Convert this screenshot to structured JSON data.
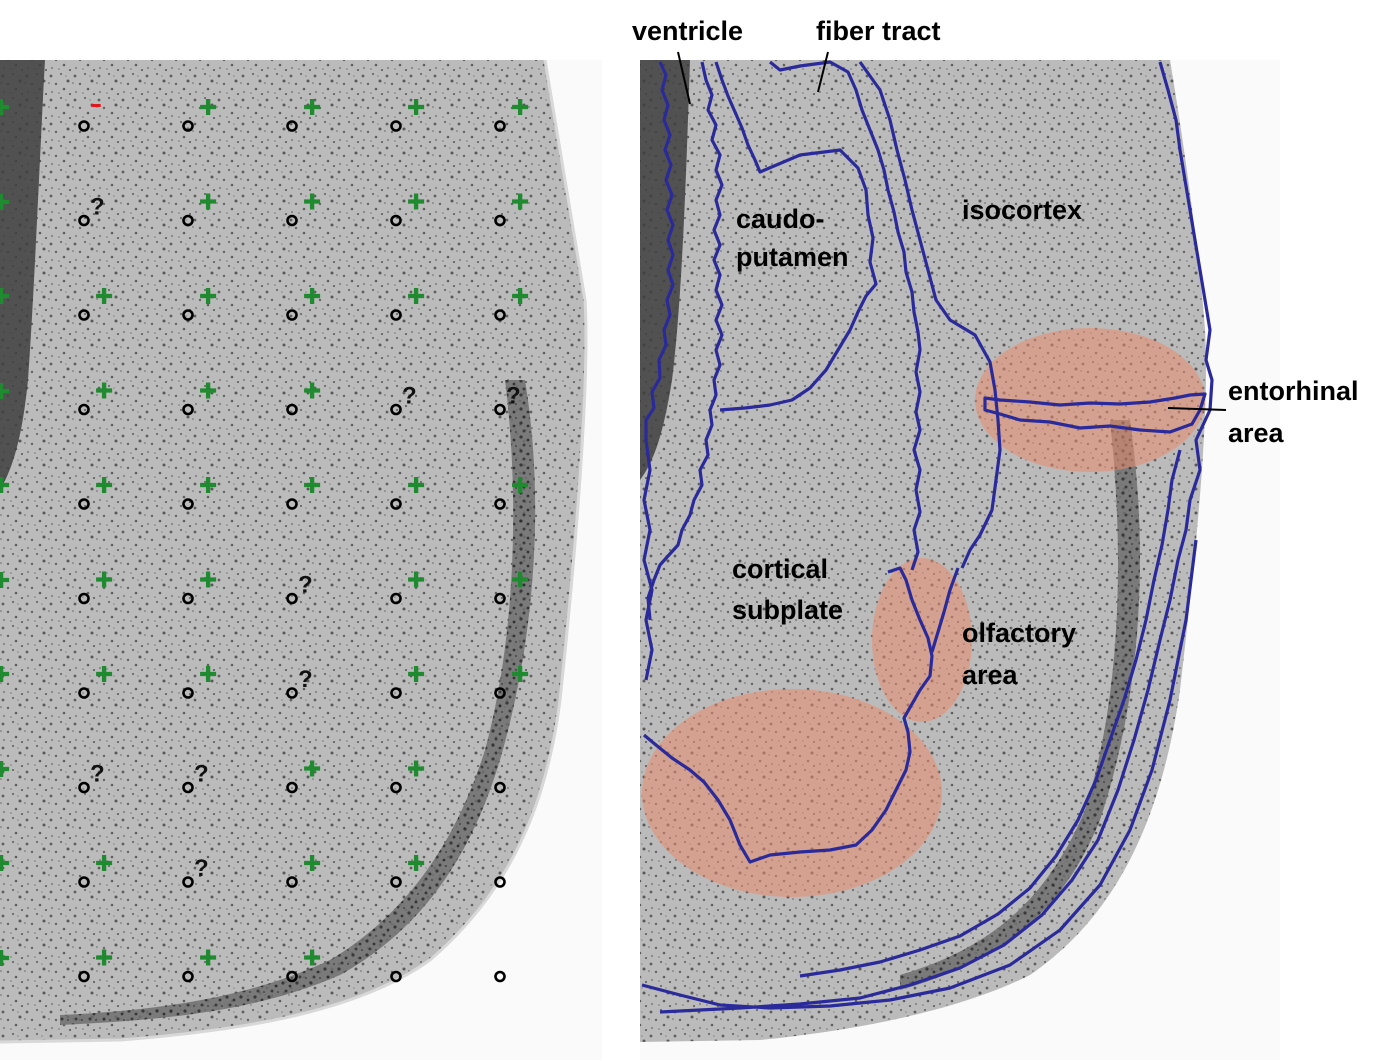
{
  "labels": {
    "ventricle": "ventricle",
    "fiber_tract": "fiber tract",
    "isocortex": "isocortex",
    "caudoputamen_line1": "caudo-",
    "caudoputamen_line2": "putamen",
    "cortical_subplate_line1": "cortical",
    "cortical_subplate_line2": "subplate",
    "olfactory_area_line1": "olfactory",
    "olfactory_area_line2": "area",
    "entorhinal_area_line1": "entorhinal",
    "entorhinal_area_line2": "area"
  },
  "marker_glyphs": {
    "plus": "✚",
    "question": "?",
    "minus": "–"
  },
  "colors": {
    "boundary": "#2a2a9a",
    "highlight": "#e98c6e",
    "plus_marker": "#1f8a2f",
    "minus_marker": "#e0161e",
    "question_marker": "#111111",
    "circle_marker": "#000000"
  },
  "grid": {
    "columns": 5,
    "rows": 10,
    "symbols": [
      [
        "minus",
        "plus",
        "plus",
        "plus",
        "plus"
      ],
      [
        "question",
        "plus",
        "plus",
        "plus",
        "plus"
      ],
      [
        "plus",
        "plus",
        "plus",
        "plus",
        "plus"
      ],
      [
        "plus",
        "plus",
        "plus",
        "question",
        "question"
      ],
      [
        "plus",
        "plus",
        "plus",
        "plus",
        "plus"
      ],
      [
        "plus",
        "plus",
        "question",
        "plus",
        "plus"
      ],
      [
        "plus",
        "plus",
        "question",
        "plus",
        "plus"
      ],
      [
        "question",
        "question",
        "plus",
        "plus",
        "none"
      ],
      [
        "plus",
        "question",
        "plus",
        "plus",
        "none"
      ],
      [
        "plus",
        "plus",
        "plus",
        "none",
        "none"
      ]
    ]
  }
}
